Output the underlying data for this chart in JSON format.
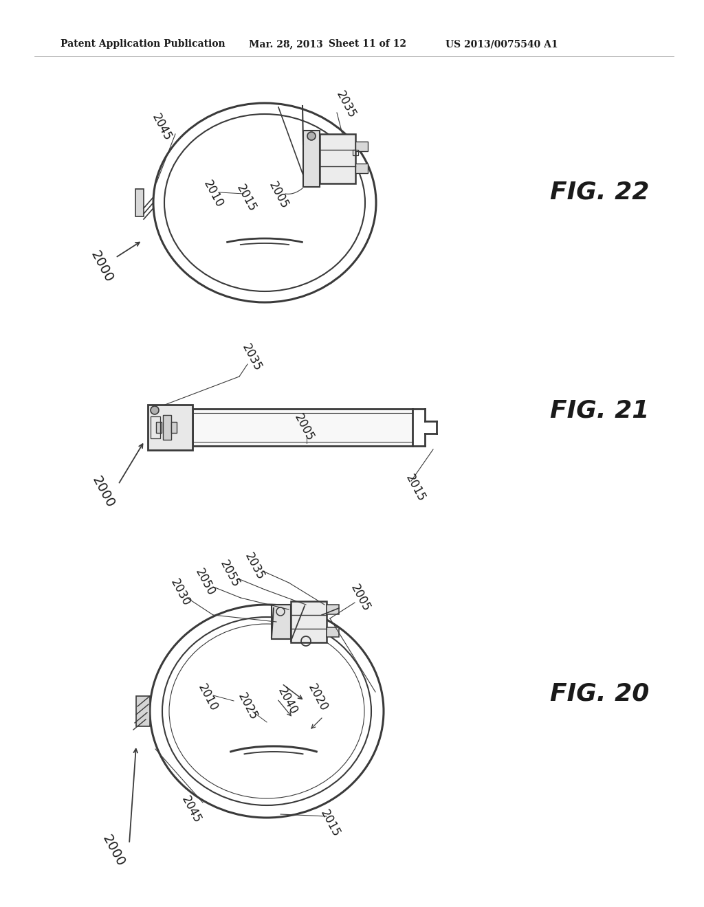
{
  "bg_color": "#ffffff",
  "header_text": "Patent Application Publication",
  "header_date": "Mar. 28, 2013",
  "header_sheet": "Sheet 11 of 12",
  "header_patent": "US 2013/0075540 A1",
  "fig22_label": "FIG. 22",
  "fig21_label": "FIG. 21",
  "fig20_label": "FIG. 20",
  "text_color": "#1a1a1a",
  "line_color": "#3a3a3a",
  "fig_label_fontsize": 26,
  "ref_fontsize": 12,
  "header_fontsize": 10
}
